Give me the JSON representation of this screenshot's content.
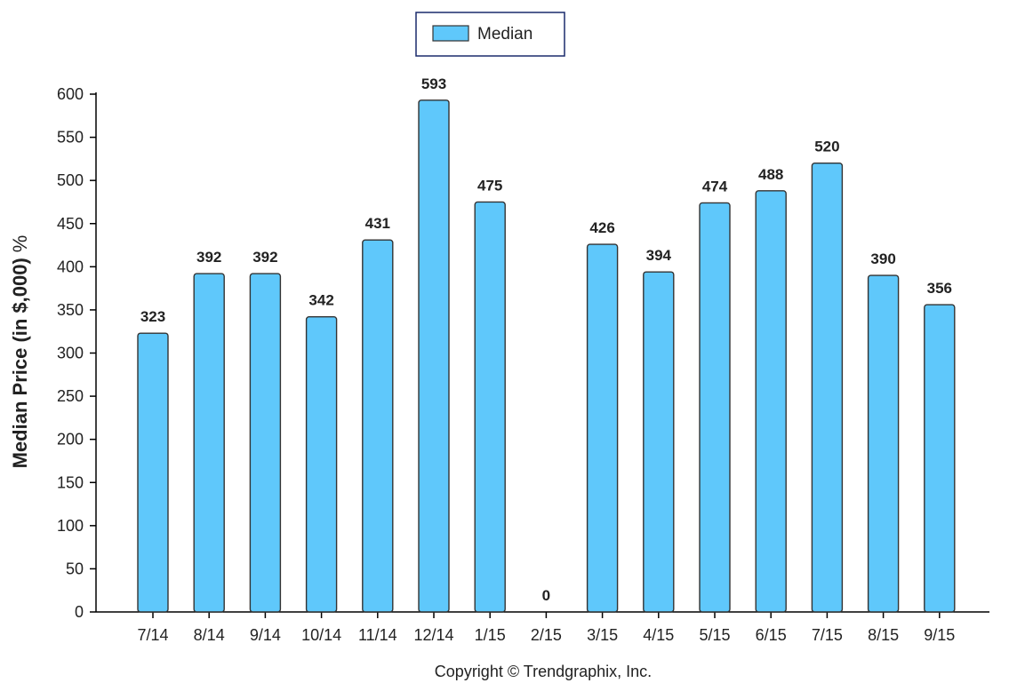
{
  "chart_data": {
    "type": "bar",
    "categories": [
      "7/14",
      "8/14",
      "9/14",
      "10/14",
      "11/14",
      "12/14",
      "1/15",
      "2/15",
      "3/15",
      "4/15",
      "5/15",
      "6/15",
      "7/15",
      "8/15",
      "9/15"
    ],
    "series": [
      {
        "name": "Median",
        "values": [
          323,
          392,
          392,
          342,
          431,
          593,
          475,
          0,
          426,
          394,
          474,
          488,
          520,
          390,
          356
        ]
      }
    ],
    "data_labels": [
      "323",
      "392",
      "392",
      "342",
      "431",
      "593",
      "475",
      "0",
      "426",
      "394",
      "474",
      "488",
      "520",
      "390",
      "356"
    ],
    "ylabel": "Median Price (in $,000)",
    "ylabel_suffix": "%",
    "ylim": [
      0,
      600
    ],
    "yticks": [
      0,
      50,
      100,
      150,
      200,
      250,
      300,
      350,
      400,
      450,
      500,
      550,
      600
    ],
    "grid": false,
    "legend_position": "top-center",
    "bar_color": "#5fc8fb",
    "bar_stroke": "#333333"
  },
  "footer": {
    "copyright": "Copyright © Trendgraphix, Inc."
  }
}
